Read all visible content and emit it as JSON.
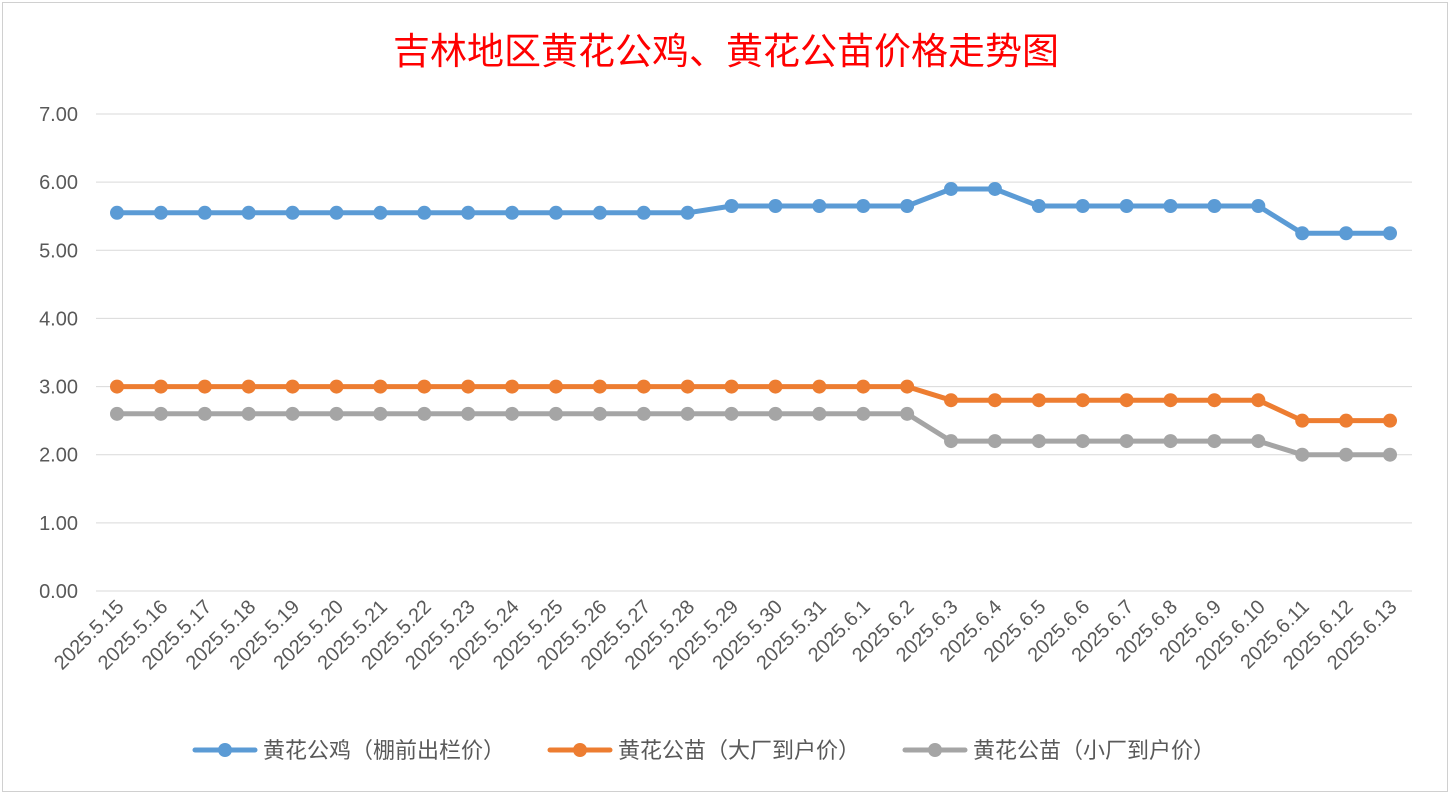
{
  "chart_data": {
    "type": "line",
    "title": "吉林地区黄花公鸡、黄花公苗价格走势图",
    "title_color": "#ff0000",
    "categories": [
      "2025.5.15",
      "2025.5.16",
      "2025.5.17",
      "2025.5.18",
      "2025.5.19",
      "2025.5.20",
      "2025.5.21",
      "2025.5.22",
      "2025.5.23",
      "2025.5.24",
      "2025.5.25",
      "2025.5.26",
      "2025.5.27",
      "2025.5.28",
      "2025.5.29",
      "2025.5.30",
      "2025.5.31",
      "2025.6.1",
      "2025.6.2",
      "2025.6.3",
      "2025.6.4",
      "2025.6.5",
      "2025.6.6",
      "2025.6.7",
      "2025.6.8",
      "2025.6.9",
      "2025.6.10",
      "2025.6.11",
      "2025.6.12",
      "2025.6.13"
    ],
    "series": [
      {
        "name": "黄花公鸡（棚前出栏价）",
        "color": "#5b9bd5",
        "values": [
          5.55,
          5.55,
          5.55,
          5.55,
          5.55,
          5.55,
          5.55,
          5.55,
          5.55,
          5.55,
          5.55,
          5.55,
          5.55,
          5.55,
          5.65,
          5.65,
          5.65,
          5.65,
          5.65,
          5.9,
          5.9,
          5.65,
          5.65,
          5.65,
          5.65,
          5.65,
          5.65,
          5.25,
          5.25,
          5.25
        ]
      },
      {
        "name": "黄花公苗（大厂到户价）",
        "color": "#ed7d31",
        "values": [
          3.0,
          3.0,
          3.0,
          3.0,
          3.0,
          3.0,
          3.0,
          3.0,
          3.0,
          3.0,
          3.0,
          3.0,
          3.0,
          3.0,
          3.0,
          3.0,
          3.0,
          3.0,
          3.0,
          2.8,
          2.8,
          2.8,
          2.8,
          2.8,
          2.8,
          2.8,
          2.8,
          2.5,
          2.5,
          2.5
        ]
      },
      {
        "name": "黄花公苗（小厂到户价）",
        "color": "#a5a5a5",
        "values": [
          2.6,
          2.6,
          2.6,
          2.6,
          2.6,
          2.6,
          2.6,
          2.6,
          2.6,
          2.6,
          2.6,
          2.6,
          2.6,
          2.6,
          2.6,
          2.6,
          2.6,
          2.6,
          2.6,
          2.2,
          2.2,
          2.2,
          2.2,
          2.2,
          2.2,
          2.2,
          2.2,
          2.0,
          2.0,
          2.0
        ]
      }
    ],
    "ylim": [
      0,
      7
    ],
    "yticks": [
      "0.00",
      "1.00",
      "2.00",
      "3.00",
      "4.00",
      "5.00",
      "6.00",
      "7.00"
    ],
    "grid": true,
    "legend_position": "bottom",
    "xlabel": "",
    "ylabel": ""
  }
}
